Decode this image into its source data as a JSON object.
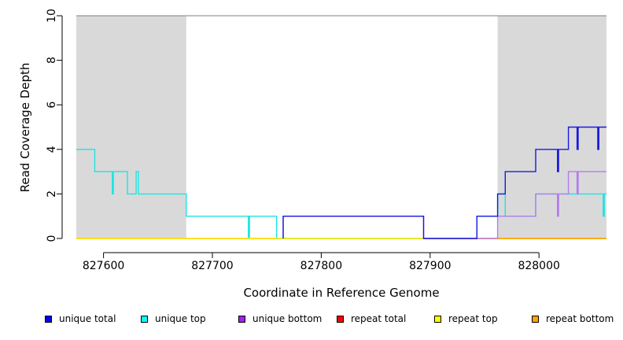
{
  "chart_data": {
    "type": "line",
    "title": "",
    "xlabel": "Coordinate in Reference Genome",
    "ylabel": "Read Coverage Depth",
    "xlim": [
      827575,
      828062
    ],
    "ylim": [
      0,
      10
    ],
    "x_ticks": [
      {
        "value": 827600,
        "label": "827600"
      },
      {
        "value": 827700,
        "label": "827700"
      },
      {
        "value": 827800,
        "label": "827800"
      },
      {
        "value": 827900,
        "label": "827900"
      },
      {
        "value": 828000,
        "label": "828000"
      }
    ],
    "y_ticks": [
      {
        "value": 0,
        "label": "0"
      },
      {
        "value": 2,
        "label": "2"
      },
      {
        "value": 4,
        "label": "4"
      },
      {
        "value": 6,
        "label": "6"
      },
      {
        "value": 8,
        "label": "8"
      },
      {
        "value": 10,
        "label": "10"
      }
    ],
    "shaded_regions": [
      {
        "x0": 827575,
        "x1": 827676
      },
      {
        "x0": 827962,
        "x1": 828062
      }
    ],
    "horizontal_line": 10,
    "grid": false,
    "legend_position": "bottom",
    "series": [
      {
        "name": "repeat total",
        "color": "#ff0000",
        "points": [
          [
            827575,
            0
          ],
          [
            828062,
            0
          ]
        ]
      },
      {
        "name": "unique top",
        "color": "#1fe4e4",
        "points": [
          [
            827575,
            4
          ],
          [
            827592,
            4
          ],
          [
            827592,
            3
          ],
          [
            827608,
            3
          ],
          [
            827608,
            2
          ],
          [
            827609,
            2
          ],
          [
            827609,
            3
          ],
          [
            827622,
            3
          ],
          [
            827622,
            2
          ],
          [
            827630,
            2
          ],
          [
            827630,
            3
          ],
          [
            827632,
            3
          ],
          [
            827632,
            2
          ],
          [
            827676,
            2
          ],
          [
            827676,
            1
          ],
          [
            827733,
            1
          ],
          [
            827733,
            0
          ],
          [
            827734,
            0
          ],
          [
            827734,
            1
          ],
          [
            827759,
            1
          ],
          [
            827759,
            0
          ],
          [
            827943,
            0
          ],
          [
            827943,
            1
          ],
          [
            827962,
            1
          ],
          [
            827962,
            2
          ],
          [
            827969,
            2
          ],
          [
            827969,
            1
          ],
          [
            827997,
            1
          ],
          [
            827997,
            2
          ],
          [
            828059,
            2
          ],
          [
            828059,
            1
          ],
          [
            828060,
            1
          ],
          [
            828060,
            2
          ],
          [
            828062,
            2
          ]
        ]
      },
      {
        "name": "repeat top",
        "color": "#ffff00",
        "points": [
          [
            827575,
            0
          ],
          [
            828062,
            0
          ]
        ]
      },
      {
        "name": "repeat bottom",
        "color": "#ffa500",
        "points": [
          [
            827962,
            0
          ],
          [
            828062,
            0
          ]
        ]
      },
      {
        "name": "unique bottom",
        "color": "#b57cf0",
        "points": [
          [
            827765,
            0
          ],
          [
            827765,
            1
          ],
          [
            827894,
            1
          ],
          [
            827894,
            0
          ],
          [
            827962,
            0
          ],
          [
            827962,
            1
          ],
          [
            827997,
            1
          ],
          [
            827997,
            2
          ],
          [
            828017,
            2
          ],
          [
            828017,
            1
          ],
          [
            828018,
            1
          ],
          [
            828018,
            2
          ],
          [
            828027,
            2
          ],
          [
            828027,
            3
          ],
          [
            828035,
            3
          ],
          [
            828035,
            2
          ],
          [
            828036,
            2
          ],
          [
            828036,
            3
          ],
          [
            828062,
            3
          ]
        ]
      },
      {
        "name": "unique total",
        "color": "#1a1ae0",
        "points": [
          [
            827765,
            0
          ],
          [
            827765,
            1
          ],
          [
            827894,
            1
          ],
          [
            827894,
            0
          ],
          [
            827943,
            0
          ],
          [
            827943,
            1
          ],
          [
            827962,
            1
          ],
          [
            827962,
            2
          ],
          [
            827969,
            2
          ],
          [
            827969,
            3
          ],
          [
            827997,
            3
          ],
          [
            827997,
            4
          ],
          [
            828017,
            4
          ],
          [
            828017,
            3
          ],
          [
            828018,
            3
          ],
          [
            828018,
            4
          ],
          [
            828027,
            4
          ],
          [
            828027,
            5
          ],
          [
            828035,
            5
          ],
          [
            828035,
            4
          ],
          [
            828036,
            4
          ],
          [
            828036,
            5
          ],
          [
            828054,
            5
          ],
          [
            828054,
            4
          ],
          [
            828055,
            4
          ],
          [
            828055,
            5
          ],
          [
            828062,
            5
          ]
        ]
      }
    ]
  },
  "legend": [
    {
      "label": "unique total",
      "color": "#0000ff"
    },
    {
      "label": "unique top",
      "color": "#00ffff"
    },
    {
      "label": "unique bottom",
      "color": "#a020f0"
    },
    {
      "label": "repeat total",
      "color": "#ff0000"
    },
    {
      "label": "repeat top",
      "color": "#ffff00"
    },
    {
      "label": "repeat bottom",
      "color": "#ffa500"
    }
  ]
}
